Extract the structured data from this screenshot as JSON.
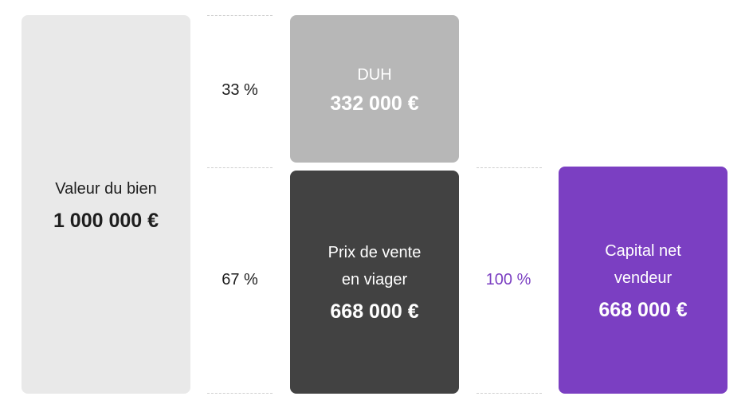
{
  "colors": {
    "property_box": "#e9e9e9",
    "duh_box": "#b7b7b7",
    "sale_box": "#424242",
    "net_box": "#7b3fc2",
    "accent_text": "#7b3fc2"
  },
  "property": {
    "label": "Valeur du bien",
    "value": "1 000 000 €"
  },
  "duh": {
    "label": "DUH",
    "value": "332 000 €",
    "percent": "33 %"
  },
  "sale": {
    "label": "Prix de vente\nen viager",
    "value": "668 000 €",
    "percent": "67 %"
  },
  "net": {
    "label": "Capital net\nvendeur",
    "value": "668 000 €",
    "percent": "100 %"
  }
}
